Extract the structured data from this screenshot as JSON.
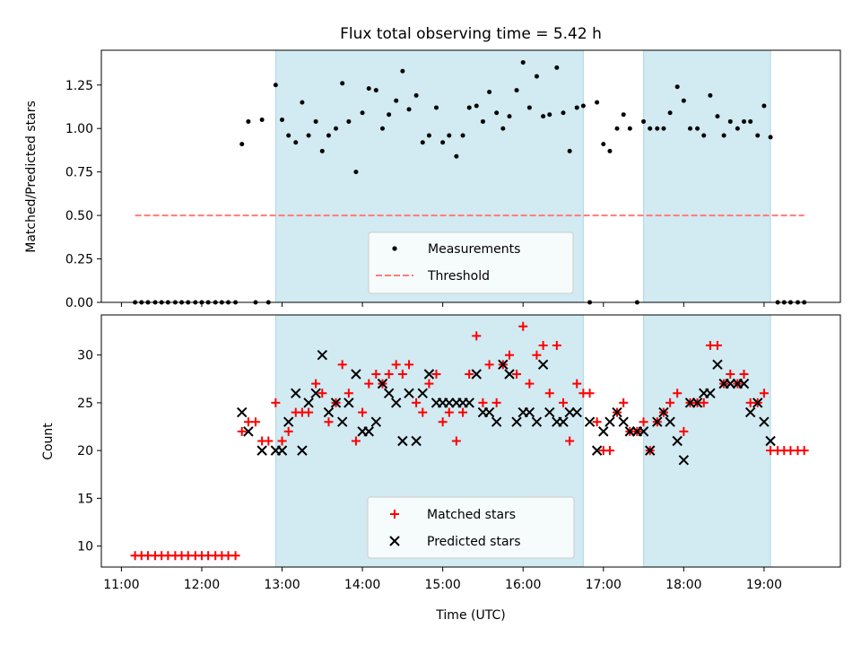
{
  "chart_data": [
    {
      "type": "scatter",
      "panel": "top",
      "title": "Flux total observing time = 5.42 h",
      "xlabel": "",
      "ylabel": "Matched/Predicted stars",
      "xlim": [
        10.75,
        19.95
      ],
      "ylim": [
        0,
        1.45
      ],
      "yticks": [
        0.0,
        0.25,
        0.5,
        0.75,
        1.0,
        1.25
      ],
      "ytick_labels": [
        "0.00",
        "0.25",
        "0.50",
        "0.75",
        "1.00",
        "1.25"
      ],
      "legend_position": "lower-center",
      "colors": {
        "measurement": "#000000",
        "threshold": "#ff7b7b",
        "shade": "#add8e6"
      },
      "observing_windows": [
        [
          12.92,
          16.75
        ],
        [
          17.5,
          19.08
        ]
      ],
      "threshold": {
        "name": "Threshold",
        "value": 0.5,
        "x_start": 11.17,
        "x_end": 19.5
      },
      "series": [
        {
          "name": "Measurements",
          "x": [
            11.17,
            11.25,
            11.33,
            11.42,
            11.5,
            11.58,
            11.67,
            11.75,
            11.83,
            11.92,
            12.0,
            12.08,
            12.17,
            12.25,
            12.33,
            12.42,
            12.5,
            12.58,
            12.67,
            12.75,
            12.83,
            12.92,
            13.0,
            13.08,
            13.17,
            13.25,
            13.33,
            13.42,
            13.5,
            13.58,
            13.67,
            13.75,
            13.83,
            13.92,
            14.0,
            14.08,
            14.17,
            14.25,
            14.33,
            14.42,
            14.5,
            14.58,
            14.67,
            14.75,
            14.83,
            14.92,
            15.0,
            15.08,
            15.17,
            15.25,
            15.33,
            15.42,
            15.5,
            15.58,
            15.67,
            15.75,
            15.83,
            15.92,
            16.0,
            16.08,
            16.17,
            16.25,
            16.33,
            16.42,
            16.5,
            16.58,
            16.67,
            16.75,
            16.83,
            16.92,
            17.0,
            17.08,
            17.17,
            17.25,
            17.33,
            17.42,
            17.5,
            17.58,
            17.67,
            17.75,
            17.83,
            17.92,
            18.0,
            18.08,
            18.17,
            18.25,
            18.33,
            18.42,
            18.5,
            18.58,
            18.67,
            18.75,
            18.83,
            18.92,
            19.0,
            19.08,
            19.17,
            19.25,
            19.33,
            19.42,
            19.5
          ],
          "y": [
            0,
            0,
            0,
            0,
            0,
            0,
            0,
            0,
            0,
            0,
            0,
            0,
            0,
            0,
            0,
            0,
            0.91,
            1.04,
            0,
            1.05,
            0,
            1.25,
            1.05,
            0.96,
            0.92,
            1.15,
            0.96,
            1.04,
            0.87,
            0.96,
            1.0,
            1.26,
            1.04,
            0.75,
            1.09,
            1.23,
            1.22,
            1.0,
            1.08,
            1.16,
            1.33,
            1.11,
            1.19,
            0.92,
            0.96,
            1.12,
            0.92,
            0.96,
            0.84,
            0.96,
            1.12,
            1.13,
            1.04,
            1.21,
            1.09,
            1.0,
            1.07,
            1.22,
            1.38,
            1.12,
            1.3,
            1.07,
            1.08,
            1.35,
            1.09,
            0.87,
            1.12,
            1.13,
            0,
            1.15,
            0.91,
            0.87,
            1.0,
            1.08,
            1.0,
            0,
            1.04,
            1.0,
            1.0,
            1.0,
            1.09,
            1.24,
            1.16,
            1.0,
            1.0,
            0.96,
            1.19,
            1.07,
            0.96,
            1.04,
            1.0,
            1.04,
            1.04,
            0.96,
            1.13,
            0.95,
            0,
            0,
            0,
            0,
            0
          ]
        }
      ]
    },
    {
      "type": "scatter",
      "panel": "bottom",
      "title": "",
      "xlabel": "Time (UTC)",
      "ylabel": "Count",
      "xlim": [
        10.75,
        19.95
      ],
      "ylim": [
        7.8,
        34.2
      ],
      "xticks": [
        11,
        12,
        13,
        14,
        15,
        16,
        17,
        18,
        19
      ],
      "xtick_labels": [
        "11:00",
        "12:00",
        "13:00",
        "14:00",
        "15:00",
        "16:00",
        "17:00",
        "18:00",
        "19:00"
      ],
      "yticks": [
        10,
        15,
        20,
        25,
        30
      ],
      "ytick_labels": [
        "10",
        "15",
        "20",
        "25",
        "30"
      ],
      "legend_position": "lower-center",
      "colors": {
        "matched": "#ff0000",
        "predicted": "#000000",
        "shade": "#add8e6"
      },
      "observing_windows": [
        [
          12.92,
          16.75
        ],
        [
          17.5,
          19.08
        ]
      ],
      "series": [
        {
          "name": "Matched stars",
          "x": [
            11.17,
            11.25,
            11.33,
            11.42,
            11.5,
            11.58,
            11.67,
            11.75,
            11.83,
            11.92,
            12.0,
            12.08,
            12.17,
            12.25,
            12.33,
            12.42,
            12.5,
            12.58,
            12.67,
            12.75,
            12.83,
            12.92,
            13.0,
            13.08,
            13.17,
            13.25,
            13.33,
            13.42,
            13.5,
            13.58,
            13.67,
            13.75,
            13.83,
            13.92,
            14.0,
            14.08,
            14.17,
            14.25,
            14.33,
            14.42,
            14.5,
            14.58,
            14.67,
            14.75,
            14.83,
            14.92,
            15.0,
            15.08,
            15.17,
            15.25,
            15.33,
            15.42,
            15.5,
            15.58,
            15.67,
            15.75,
            15.83,
            15.92,
            16.0,
            16.08,
            16.17,
            16.25,
            16.33,
            16.42,
            16.5,
            16.58,
            16.67,
            16.75,
            16.83,
            16.92,
            17.0,
            17.08,
            17.17,
            17.25,
            17.33,
            17.42,
            17.5,
            17.58,
            17.67,
            17.75,
            17.83,
            17.92,
            18.0,
            18.08,
            18.17,
            18.25,
            18.33,
            18.42,
            18.5,
            18.58,
            18.67,
            18.75,
            18.83,
            18.92,
            19.0,
            19.08,
            19.17,
            19.25,
            19.33,
            19.42,
            19.5
          ],
          "y": [
            9,
            9,
            9,
            9,
            9,
            9,
            9,
            9,
            9,
            9,
            9,
            9,
            9,
            9,
            9,
            9,
            22,
            23,
            23,
            21,
            21,
            25,
            21,
            22,
            24,
            24,
            24,
            27,
            26,
            23,
            25,
            29,
            26,
            21,
            24,
            27,
            28,
            27,
            28,
            29,
            28,
            29,
            25,
            24,
            27,
            28,
            23,
            24,
            21,
            24,
            28,
            32,
            25,
            29,
            25,
            29,
            30,
            28,
            33,
            27,
            30,
            31,
            26,
            31,
            25,
            21,
            27,
            26,
            26,
            23,
            20,
            20,
            24,
            25,
            22,
            22,
            23,
            20,
            23,
            24,
            25,
            26,
            22,
            25,
            25,
            25,
            31,
            31,
            27,
            28,
            27,
            28,
            25,
            25,
            26,
            20,
            20,
            20,
            20,
            20,
            20
          ]
        },
        {
          "name": "Predicted stars",
          "x": [
            12.5,
            12.58,
            12.75,
            12.92,
            13.0,
            13.08,
            13.17,
            13.25,
            13.33,
            13.42,
            13.5,
            13.58,
            13.67,
            13.75,
            13.83,
            13.92,
            14.0,
            14.08,
            14.17,
            14.25,
            14.33,
            14.42,
            14.5,
            14.58,
            14.67,
            14.75,
            14.83,
            14.92,
            15.0,
            15.08,
            15.17,
            15.25,
            15.33,
            15.42,
            15.5,
            15.58,
            15.67,
            15.75,
            15.83,
            15.92,
            16.0,
            16.08,
            16.17,
            16.25,
            16.33,
            16.42,
            16.5,
            16.58,
            16.67,
            16.83,
            16.92,
            17.0,
            17.08,
            17.17,
            17.25,
            17.33,
            17.42,
            17.5,
            17.58,
            17.67,
            17.75,
            17.83,
            17.92,
            18.0,
            18.08,
            18.17,
            18.25,
            18.33,
            18.42,
            18.5,
            18.58,
            18.67,
            18.75,
            18.83,
            18.92,
            19.0,
            19.08
          ],
          "y": [
            24,
            22,
            20,
            20,
            20,
            23,
            26,
            20,
            25,
            26,
            30,
            24,
            25,
            23,
            25,
            28,
            22,
            22,
            23,
            27,
            26,
            25,
            21,
            26,
            21,
            26,
            28,
            25,
            25,
            25,
            25,
            25,
            25,
            28,
            24,
            24,
            23,
            29,
            28,
            23,
            24,
            24,
            23,
            29,
            24,
            23,
            23,
            24,
            24,
            23,
            20,
            22,
            23,
            24,
            23,
            22,
            22,
            22,
            20,
            23,
            24,
            23,
            21,
            19,
            25,
            25,
            26,
            26,
            29,
            27,
            27,
            27,
            27,
            24,
            25,
            23,
            21
          ]
        }
      ]
    }
  ]
}
